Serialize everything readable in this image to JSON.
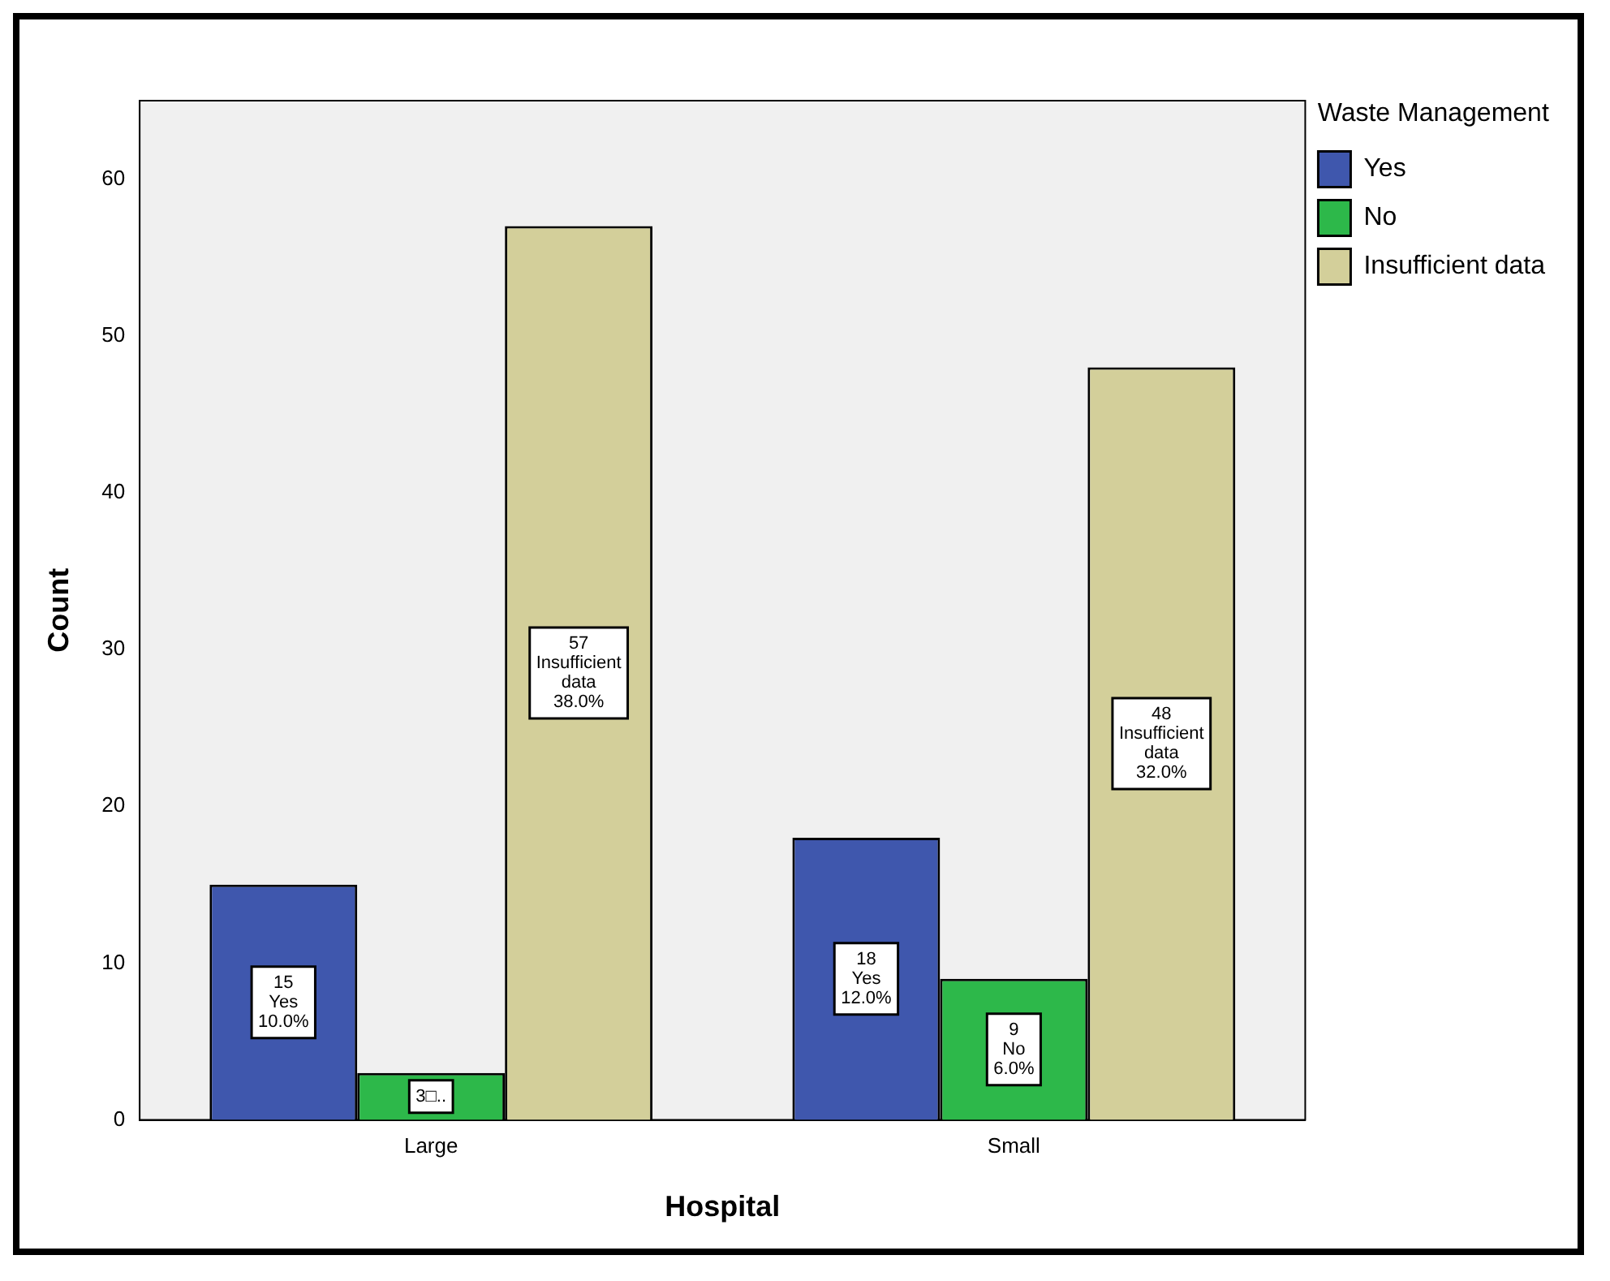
{
  "chart_data": {
    "type": "bar",
    "xlabel": "Hospital",
    "ylabel": "Count",
    "legend_title": "Waste Management",
    "categories": [
      "Large",
      "Small"
    ],
    "series": [
      {
        "name": "Yes",
        "color": "#3f57ad",
        "values": [
          15,
          18
        ],
        "value_labels": [
          "15\nYes\n10.0%",
          "18\nYes\n12.0%"
        ]
      },
      {
        "name": "No",
        "color": "#2db84a",
        "values": [
          3,
          9
        ],
        "value_labels": [
          "3□..",
          "9\nNo\n6.0%"
        ]
      },
      {
        "name": "Insufficient data",
        "color": "#d3cf9a",
        "values": [
          57,
          48
        ],
        "value_labels": [
          "57\nInsufficient\ndata\n38.0%",
          "48\nInsufficient\ndata\n32.0%"
        ]
      }
    ],
    "ylim": [
      0,
      65
    ],
    "yticks": [
      0,
      10,
      20,
      30,
      40,
      50,
      60
    ],
    "grid": false,
    "legend": "top right"
  }
}
